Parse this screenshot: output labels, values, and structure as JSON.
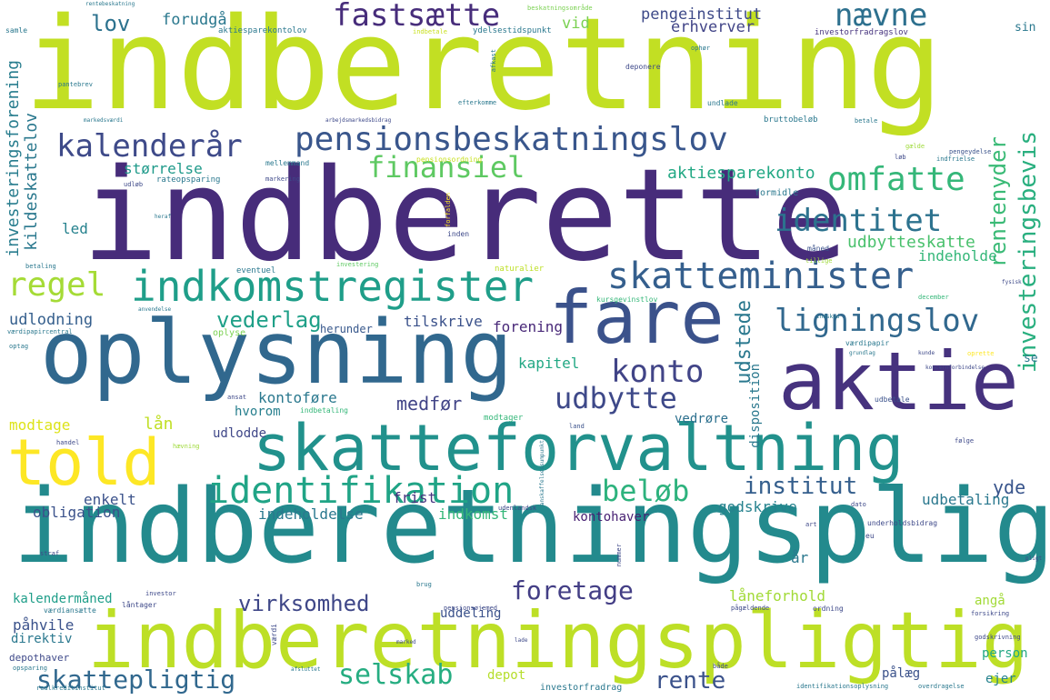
{
  "title": "",
  "words": [
    {
      "text": "indberetning",
      "color": "#c2df23"
    },
    {
      "text": "indberette",
      "color": "#472c7a"
    },
    {
      "text": "indberetningspligt",
      "color": "#238a8d"
    },
    {
      "text": "indberetningspligtig",
      "color": "#bddf26"
    },
    {
      "text": "oplysning",
      "color": "#31688e"
    },
    {
      "text": "skatteforvaltning",
      "color": "#21918c"
    },
    {
      "text": "aktie",
      "color": "#46327e"
    },
    {
      "text": "fare",
      "color": "#3b528b"
    },
    {
      "text": "told",
      "color": "#fde725"
    },
    {
      "text": "pensionsbeskatningslov",
      "color": "#39568c"
    },
    {
      "text": "indkomstregister",
      "color": "#1f9e89"
    },
    {
      "text": "skatteminister",
      "color": "#355f8d"
    },
    {
      "text": "identifikation",
      "color": "#20a486"
    },
    {
      "text": "fastsætte",
      "color": "#472d7b"
    },
    {
      "text": "kalenderår",
      "color": "#3e4a89"
    },
    {
      "text": "omfatte",
      "color": "#35b779"
    },
    {
      "text": "identitet",
      "color": "#2c728e"
    },
    {
      "text": "ligningslov",
      "color": "#31688e"
    },
    {
      "text": "finansiel",
      "color": "#5ec962"
    },
    {
      "text": "nævne",
      "color": "#2d708e"
    },
    {
      "text": "konto",
      "color": "#414487"
    },
    {
      "text": "udbytte",
      "color": "#3e4989"
    },
    {
      "text": "regel",
      "color": "#a5db36"
    },
    {
      "text": "beløb",
      "color": "#2db27d"
    },
    {
      "text": "foretage",
      "color": "#433e85"
    },
    {
      "text": "selskab",
      "color": "#26ad81"
    },
    {
      "text": "skattepligtig",
      "color": "#31688e"
    },
    {
      "text": "virksomhed",
      "color": "#3f4788"
    },
    {
      "text": "institut",
      "color": "#355f8d"
    },
    {
      "text": "rente",
      "color": "#3b528b"
    },
    {
      "text": "vederlag",
      "color": "#1fa088"
    },
    {
      "text": "investeringsbevis",
      "color": "#29af7f"
    },
    {
      "text": "rentenyder",
      "color": "#3aba76"
    },
    {
      "text": "udstede",
      "color": "#2a788e"
    },
    {
      "text": "udbytteskatte",
      "color": "#4ac16d"
    },
    {
      "text": "aktiesparekonto",
      "color": "#22a884"
    },
    {
      "text": "investeringsforening",
      "color": "#287d8e"
    },
    {
      "text": "kildeskattelov",
      "color": "#2a788e"
    },
    {
      "text": "lov",
      "color": "#2c728e"
    },
    {
      "text": "forudgå",
      "color": "#2a788e"
    },
    {
      "text": "pengeinstitut",
      "color": "#3e4a89"
    },
    {
      "text": "erhverver",
      "color": "#414487"
    },
    {
      "text": "vid",
      "color": "#7ad151"
    },
    {
      "text": "størrelse",
      "color": "#1f9a8a"
    },
    {
      "text": "rateopsparing",
      "color": "#2a788e"
    },
    {
      "text": "udlodning",
      "color": "#355f8d"
    },
    {
      "text": "led",
      "color": "#26828e"
    },
    {
      "text": "indeholde",
      "color": "#35b779"
    },
    {
      "text": "tilskrive",
      "color": "#3b528b"
    },
    {
      "text": "forening",
      "color": "#482878"
    },
    {
      "text": "herunder",
      "color": "#38588c"
    },
    {
      "text": "medfør",
      "color": "#414487"
    },
    {
      "text": "kontoføre",
      "color": "#2a788e"
    },
    {
      "text": "hvorom",
      "color": "#277f8e"
    },
    {
      "text": "kapitel",
      "color": "#22a884"
    },
    {
      "text": "disposition",
      "color": "#2a788e"
    },
    {
      "text": "vedrøre",
      "color": "#2d708e"
    },
    {
      "text": "modtage",
      "color": "#dde318"
    },
    {
      "text": "lån",
      "color": "#c0df25"
    },
    {
      "text": "udlodde",
      "color": "#3f4788"
    },
    {
      "text": "yde",
      "color": "#39558c"
    },
    {
      "text": "enkelt",
      "color": "#3b528b"
    },
    {
      "text": "obligation",
      "color": "#3b528b"
    },
    {
      "text": "indeholdelse",
      "color": "#2a788e"
    },
    {
      "text": "indkomst",
      "color": "#35b779"
    },
    {
      "text": "frist",
      "color": "#46337f"
    },
    {
      "text": "godskrive",
      "color": "#26828e"
    },
    {
      "text": "udbetaling",
      "color": "#2a788e"
    },
    {
      "text": "kontohaver",
      "color": "#482173"
    },
    {
      "text": "år",
      "color": "#2a788e"
    },
    {
      "text": "kalendermåned",
      "color": "#1f9e89"
    },
    {
      "text": "påhvile",
      "color": "#3b528b"
    },
    {
      "text": "direktiv",
      "color": "#2a788e"
    },
    {
      "text": "uddeling",
      "color": "#3b528b"
    },
    {
      "text": "låneforhold",
      "color": "#a2da37"
    },
    {
      "text": "angå",
      "color": "#a2da37"
    },
    {
      "text": "person",
      "color": "#22a884"
    },
    {
      "text": "ejer",
      "color": "#26828e"
    },
    {
      "text": "pålæg",
      "color": "#3b528b"
    },
    {
      "text": "depot",
      "color": "#b5de2b"
    },
    {
      "text": "depothaver",
      "color": "#3e4989"
    },
    {
      "text": "investorfradrag",
      "color": "#2a788e"
    },
    {
      "text": "se",
      "color": "#2a788e"
    },
    {
      "text": "sin",
      "color": "#2a788e"
    },
    {
      "text": "investorfradragslov",
      "color": "#46337e"
    },
    {
      "text": "aktiesparekontolov",
      "color": "#2a788e"
    },
    {
      "text": "ydelsestidspunkt",
      "color": "#2a788e"
    },
    {
      "text": "indbetale",
      "color": "#c8e020"
    },
    {
      "text": "pensionsordning",
      "color": "#c8e020"
    },
    {
      "text": "undlade",
      "color": "#2a788e"
    },
    {
      "text": "deponere",
      "color": "#3e4989"
    },
    {
      "text": "efterkomme",
      "color": "#2a788e"
    },
    {
      "text": "bruttobeløb",
      "color": "#2a788e"
    },
    {
      "text": "mellemmand",
      "color": "#2a788e"
    },
    {
      "text": "markering",
      "color": "#3e4989"
    },
    {
      "text": "formidle",
      "color": "#2a788e"
    },
    {
      "text": "pengeydelse",
      "color": "#3b528b"
    },
    {
      "text": "måned",
      "color": "#3b528b"
    },
    {
      "text": "tillige",
      "color": "#9fda3a"
    },
    {
      "text": "eventuel",
      "color": "#2a788e"
    },
    {
      "text": "investering",
      "color": "#5ec962"
    },
    {
      "text": "naturalier",
      "color": "#bddf26"
    },
    {
      "text": "kursgevinstlov",
      "color": "#35b779"
    },
    {
      "text": "december",
      "color": "#35b779"
    },
    {
      "text": "betaling",
      "color": "#2a788e"
    },
    {
      "text": "oplyse",
      "color": "#7ad151"
    },
    {
      "text": "værdipapir",
      "color": "#2a788e"
    },
    {
      "text": "grundlag",
      "color": "#2a788e"
    },
    {
      "text": "kunde",
      "color": "#3e4989"
    },
    {
      "text": "oprette",
      "color": "#fde725"
    },
    {
      "text": "koncernforbindelse",
      "color": "#3e4989"
    },
    {
      "text": "ansat",
      "color": "#3e4989"
    },
    {
      "text": "indbetaling",
      "color": "#35b779"
    },
    {
      "text": "modtager",
      "color": "#35b779"
    },
    {
      "text": "udbetale",
      "color": "#3b528b"
    },
    {
      "text": "land",
      "color": "#3b528b"
    },
    {
      "text": "handel",
      "color": "#3e4989"
    },
    {
      "text": "udenlandsk",
      "color": "#3e4989"
    },
    {
      "text": "dato",
      "color": "#3e4989"
    },
    {
      "text": "underholdsbidrag",
      "color": "#3e4989"
    },
    {
      "text": "art",
      "color": "#3e4989"
    },
    {
      "text": "straf",
      "color": "#3e4989"
    },
    {
      "text": "investor",
      "color": "#3e4989"
    },
    {
      "text": "værdiansætte",
      "color": "#2a788e"
    },
    {
      "text": "låntager",
      "color": "#3e4989"
    },
    {
      "text": "pensionsøjemed",
      "color": "#3e4989"
    },
    {
      "text": "pågældende",
      "color": "#3e4989"
    },
    {
      "text": "ordning",
      "color": "#3e4989"
    },
    {
      "text": "forsikring",
      "color": "#3e4989"
    },
    {
      "text": "godskrivning",
      "color": "#3e4989"
    },
    {
      "text": "opsparing",
      "color": "#2a788e"
    },
    {
      "text": "realkreditinstitut",
      "color": "#2a788e"
    },
    {
      "text": "identifikationsoplysning",
      "color": "#2a788e"
    },
    {
      "text": "overdragelse",
      "color": "#2a788e"
    },
    {
      "text": "værdi",
      "color": "#3e4989"
    },
    {
      "text": "samle",
      "color": "#2a788e"
    },
    {
      "text": "pantebrev",
      "color": "#2a788e"
    },
    {
      "text": "ophør",
      "color": "#2a788e"
    },
    {
      "text": "afkast",
      "color": "#2a788e"
    },
    {
      "text": "beskatningsområde",
      "color": "#7ad151"
    },
    {
      "text": "optag",
      "color": "#2a788e"
    },
    {
      "text": "værdipapircentral",
      "color": "#2a788e"
    },
    {
      "text": "anvendelse",
      "color": "#2a788e"
    },
    {
      "text": "indskud",
      "color": "#2a788e"
    },
    {
      "text": "arbejdsmarkedsbidrag",
      "color": "#3e4989"
    },
    {
      "text": "markedsværdi",
      "color": "#2a788e"
    },
    {
      "text": "betale",
      "color": "#2a788e"
    },
    {
      "text": "gælde",
      "color": "#9fda3a"
    },
    {
      "text": "indfrielse",
      "color": "#2a788e"
    },
    {
      "text": "løb",
      "color": "#3e4989"
    },
    {
      "text": "udløb",
      "color": "#3e4989"
    },
    {
      "text": "inden",
      "color": "#3e4989"
    },
    {
      "text": "heraf",
      "color": "#2a788e"
    },
    {
      "text": "rentebeskatning",
      "color": "#2a788e"
    },
    {
      "text": "anskaffelsessumpunkt",
      "color": "#2a788e"
    },
    {
      "text": "forfalden",
      "color": "#fde725"
    },
    {
      "text": "fysisk",
      "color": "#3e4989"
    },
    {
      "text": "hævning",
      "color": "#9fda3a"
    },
    {
      "text": "følge",
      "color": "#3e4989"
    },
    {
      "text": "nummer",
      "color": "#3e4989"
    },
    {
      "text": "brug",
      "color": "#2a788e"
    },
    {
      "text": "eu",
      "color": "#3e4989"
    },
    {
      "text": "pligt",
      "color": "#3e4989"
    },
    {
      "text": "marked",
      "color": "#3e4989"
    },
    {
      "text": "lade",
      "color": "#3e4989"
    },
    {
      "text": "både",
      "color": "#3e4989"
    },
    {
      "text": "afsluttet",
      "color": "#2a788e"
    }
  ]
}
